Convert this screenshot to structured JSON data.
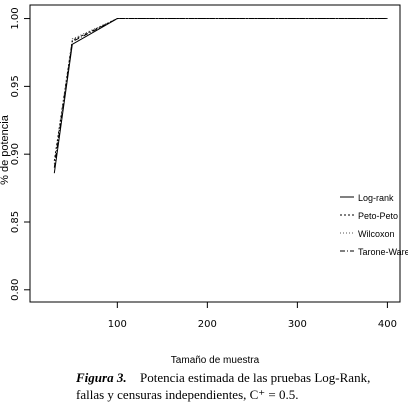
{
  "chart_data": {
    "type": "line",
    "xlabel": "Tamaño de muestra",
    "ylabel": "% de potencia",
    "x": [
      30,
      50,
      100,
      200,
      300,
      400
    ],
    "series": [
      {
        "name": "Log-rank",
        "color": "#000000",
        "dash": "none",
        "values": [
          0.886,
          0.981,
          1.0,
          1.0,
          1.0,
          1.0
        ]
      },
      {
        "name": "Peto-Peto",
        "color": "#000000",
        "dash": "2,2",
        "values": [
          0.895,
          0.984,
          1.0,
          1.0,
          1.0,
          1.0
        ]
      },
      {
        "name": "Wilcoxon",
        "color": "#555555",
        "dash": "1,2",
        "values": [
          0.893,
          0.985,
          1.0,
          1.0,
          1.0,
          1.0
        ]
      },
      {
        "name": "Tarone-Ware",
        "color": "#000000",
        "dash": "5,2,1,2",
        "values": [
          0.89,
          0.983,
          1.0,
          1.0,
          1.0,
          1.0
        ]
      }
    ],
    "xlim": [
      3,
      414
    ],
    "ylim": [
      0.791,
      1.01
    ],
    "xticks": [
      100,
      200,
      300,
      400
    ],
    "yticks": [
      {
        "value": 0.8,
        "label": "0.80"
      },
      {
        "value": 0.85,
        "label": "0.85"
      },
      {
        "value": 0.9,
        "label": "0.90"
      },
      {
        "value": 0.95,
        "label": "0.95"
      },
      {
        "value": 1.0,
        "label": "1.00"
      }
    ],
    "legend": "right",
    "caption": {
      "label": "Figura 3.",
      "lines": [
        "Potencia estimada de las pruebas Log-Rank,",
        "fallas y censuras independientes, C⁺ = 0.5."
      ]
    }
  }
}
